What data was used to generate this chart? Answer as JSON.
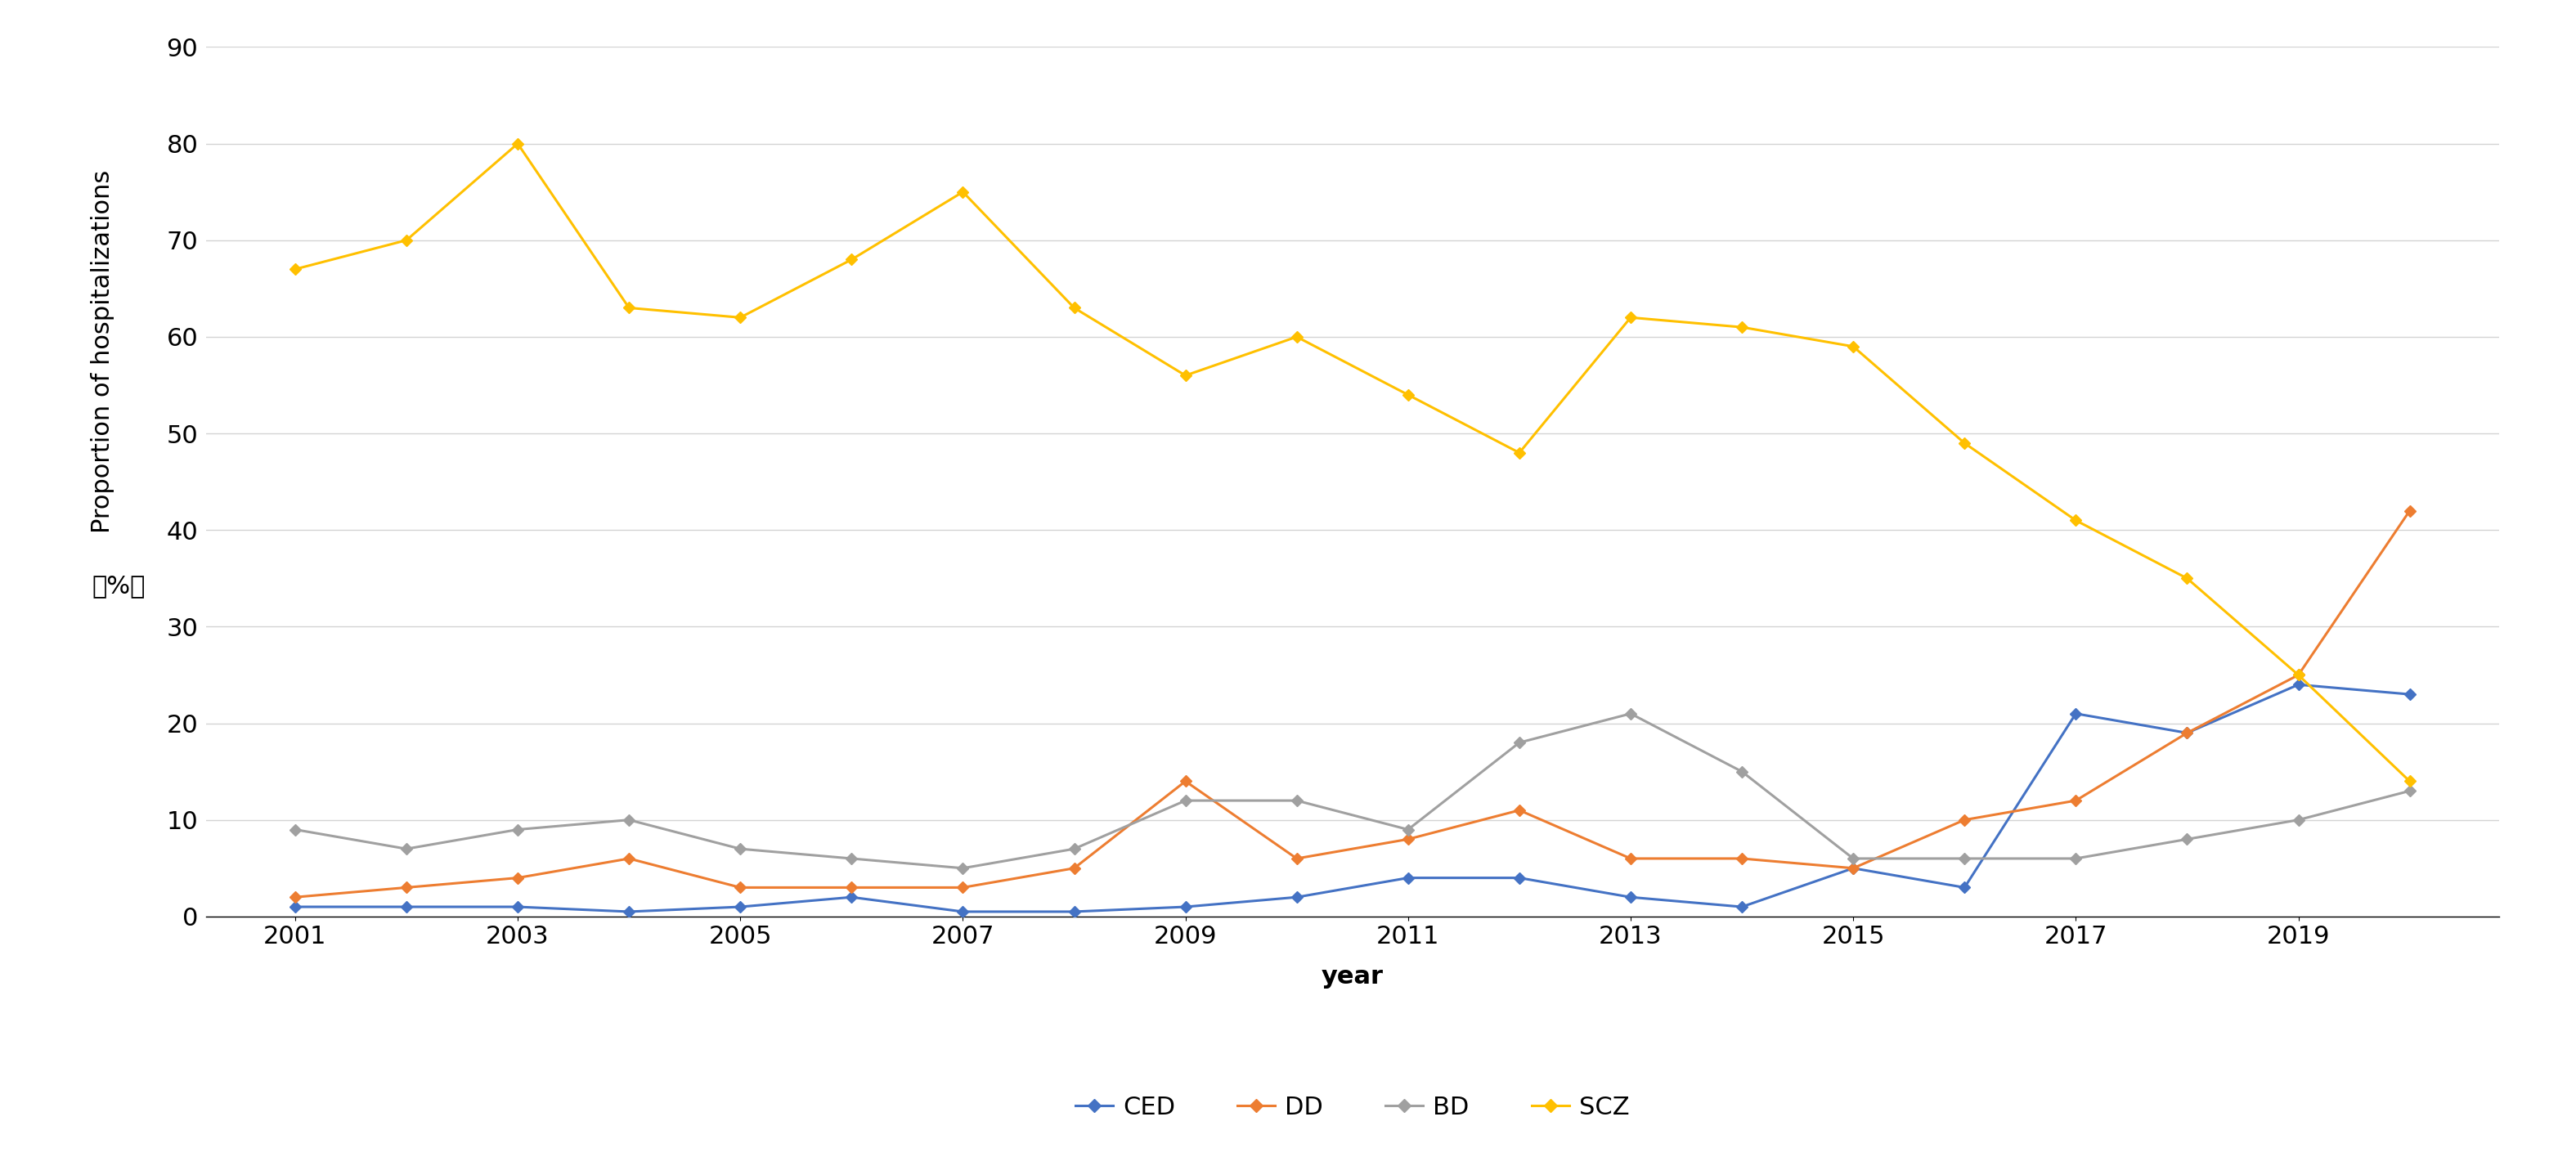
{
  "years": [
    2001,
    2002,
    2003,
    2004,
    2005,
    2006,
    2007,
    2008,
    2009,
    2010,
    2011,
    2012,
    2013,
    2014,
    2015,
    2016,
    2017,
    2018,
    2019,
    2020
  ],
  "CED": [
    1,
    1,
    1,
    0.5,
    1,
    2,
    0.5,
    0.5,
    1,
    2,
    4,
    4,
    2,
    1,
    5,
    3,
    21,
    19,
    24,
    23
  ],
  "DD": [
    2,
    3,
    4,
    6,
    3,
    3,
    3,
    5,
    14,
    6,
    8,
    11,
    6,
    6,
    5,
    10,
    12,
    19,
    25,
    42
  ],
  "BD": [
    9,
    7,
    9,
    10,
    7,
    6,
    5,
    7,
    12,
    12,
    9,
    18,
    21,
    15,
    6,
    6,
    6,
    8,
    10,
    13
  ],
  "SCZ": [
    67,
    70,
    80,
    63,
    62,
    68,
    75,
    63,
    56,
    60,
    54,
    48,
    62,
    61,
    59,
    49,
    41,
    35,
    25,
    14
  ],
  "series_colors": {
    "CED": "#4472C4",
    "DD": "#ED7D31",
    "BD": "#A0A0A0",
    "SCZ": "#FFC000"
  },
  "marker_style": "D",
  "marker_size": 7,
  "line_width": 2.2,
  "xlabel": "year",
  "ylim": [
    0,
    90
  ],
  "yticks": [
    0,
    10,
    20,
    30,
    40,
    50,
    60,
    70,
    80,
    90
  ],
  "xticks": [
    2001,
    2003,
    2005,
    2007,
    2009,
    2011,
    2013,
    2015,
    2017,
    2019
  ],
  "legend_labels": [
    "CED",
    "DD",
    "BD",
    "SCZ"
  ],
  "grid_color": "#D3D3D3",
  "background_color": "#FFFFFF",
  "label_fontsize": 22,
  "tick_fontsize": 22,
  "legend_fontsize": 22,
  "ylabel_main": "Proportion of hospitalizations",
  "ylabel_unit": "（%）"
}
